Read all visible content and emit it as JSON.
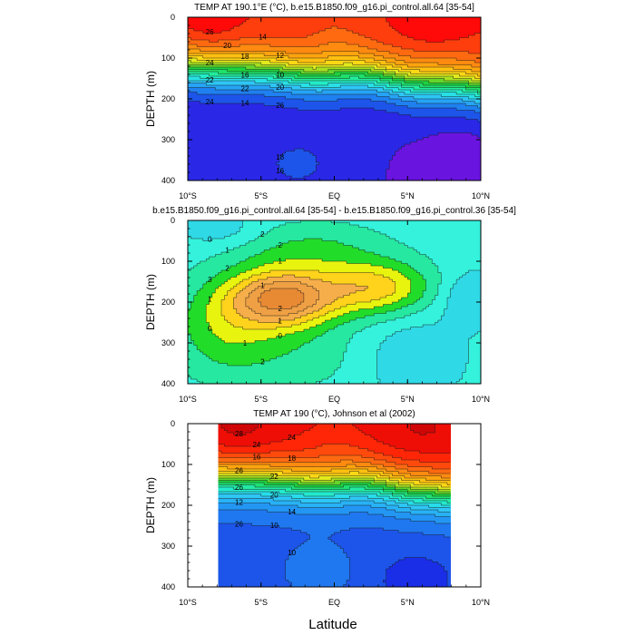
{
  "chart_data": [
    {
      "type": "heatmap",
      "title": "TEMP AT 190.1°E (°C), b.e15.B1850.f09_g16.pi_control.all.64 [35-54]",
      "ylabel": "DEPTH (m)",
      "xlabel": "",
      "x_ticks": [
        "10°S",
        "5°S",
        "EQ",
        "5°N",
        "10°N"
      ],
      "y_ticks": [
        "0",
        "100",
        "200",
        "300",
        "400"
      ],
      "xlim": [
        -10,
        10
      ],
      "ylim": [
        0,
        400
      ],
      "contour_labels": [
        "26",
        "24",
        "22",
        "20",
        "18",
        "16",
        "14",
        "12",
        "10",
        "26",
        "24",
        "22",
        "20",
        "18",
        "16",
        "14",
        "12",
        "10",
        "24",
        "22",
        "20",
        "18",
        "16",
        "14",
        "12",
        "10"
      ],
      "levels": [
        8,
        9,
        10,
        11,
        12,
        13,
        14,
        15,
        16,
        17,
        18,
        19,
        20,
        21,
        22,
        23,
        24,
        25,
        26,
        27
      ],
      "colors": [
        "#6a14e0",
        "#2a28e6",
        "#1d55ea",
        "#1f80f0",
        "#26a4f5",
        "#2ec6f5",
        "#28e0e6",
        "#24ecc8",
        "#22ec9c",
        "#1ee06a",
        "#1ed23e",
        "#64d62a",
        "#a6e020",
        "#e2ea1c",
        "#ffd814",
        "#ffc010",
        "#ffa40e",
        "#ff8a10",
        "#ff6a10",
        "#ff3e0e",
        "#ff0a08"
      ]
    },
    {
      "type": "heatmap",
      "title": "b.e15.B1850.f09_g16.pi_control.all.64 [35-54] - b.e15.B1850.f09_g16.pi_control.36 [35-54]",
      "ylabel": "DEPTH (m)",
      "xlabel": "",
      "x_ticks": [
        "10°S",
        "5°S",
        "EQ",
        "5°N",
        "10°N"
      ],
      "y_ticks": [
        "0",
        "100",
        "200",
        "300",
        "400"
      ],
      "xlim": [
        -10,
        10
      ],
      "ylim": [
        0,
        400
      ],
      "contour_labels": [
        "0",
        "1",
        "1",
        "1",
        "2",
        "2",
        "2",
        "2",
        "3",
        "2",
        "1",
        "1",
        "1",
        "0",
        "0"
      ],
      "levels": [
        -0.5,
        0,
        0.5,
        1,
        1.5,
        2,
        2.5,
        3
      ],
      "colors": [
        "#2fd9e6",
        "#34f2dc",
        "#26e8a0",
        "#22dc2a",
        "#e8f40e",
        "#ffd21c",
        "#f6ae4a",
        "#efa044",
        "#e88a34"
      ]
    },
    {
      "type": "heatmap",
      "title": "TEMP AT 190 (°C), Johnson et al (2002)",
      "ylabel": "DEPTH (m)",
      "xlabel": "Latitude",
      "x_ticks": [
        "10°S",
        "5°S",
        "EQ",
        "5°N",
        "10°N"
      ],
      "y_ticks": [
        "0",
        "100",
        "200",
        "300",
        "400"
      ],
      "xlim": [
        -10,
        10
      ],
      "ylim": [
        0,
        400
      ],
      "data_xlim": [
        -8,
        8
      ],
      "contour_labels": [
        "28",
        "26",
        "26",
        "24",
        "22",
        "20",
        "18",
        "16",
        "14",
        "12",
        "10",
        "10",
        "26",
        "24",
        "22",
        "20",
        "18",
        "16",
        "14",
        "12",
        "10",
        "28"
      ],
      "levels": [
        8,
        9,
        10,
        11,
        12,
        13,
        14,
        15,
        16,
        17,
        18,
        19,
        20,
        21,
        22,
        23,
        24,
        25,
        26,
        27,
        28,
        29
      ],
      "colors": [
        "#1a2ee8",
        "#1d55ea",
        "#2078f0",
        "#2396f4",
        "#28b2f6",
        "#2ec6f5",
        "#28dcea",
        "#24eacc",
        "#22eaa4",
        "#1ee070",
        "#1ed23e",
        "#64d62a",
        "#a6e020",
        "#e2ea1c",
        "#ffd814",
        "#ffc010",
        "#ffa40e",
        "#ff8a10",
        "#ff6a10",
        "#ff4a0c",
        "#ff2608",
        "#ee0e06",
        "#d00606"
      ]
    }
  ]
}
